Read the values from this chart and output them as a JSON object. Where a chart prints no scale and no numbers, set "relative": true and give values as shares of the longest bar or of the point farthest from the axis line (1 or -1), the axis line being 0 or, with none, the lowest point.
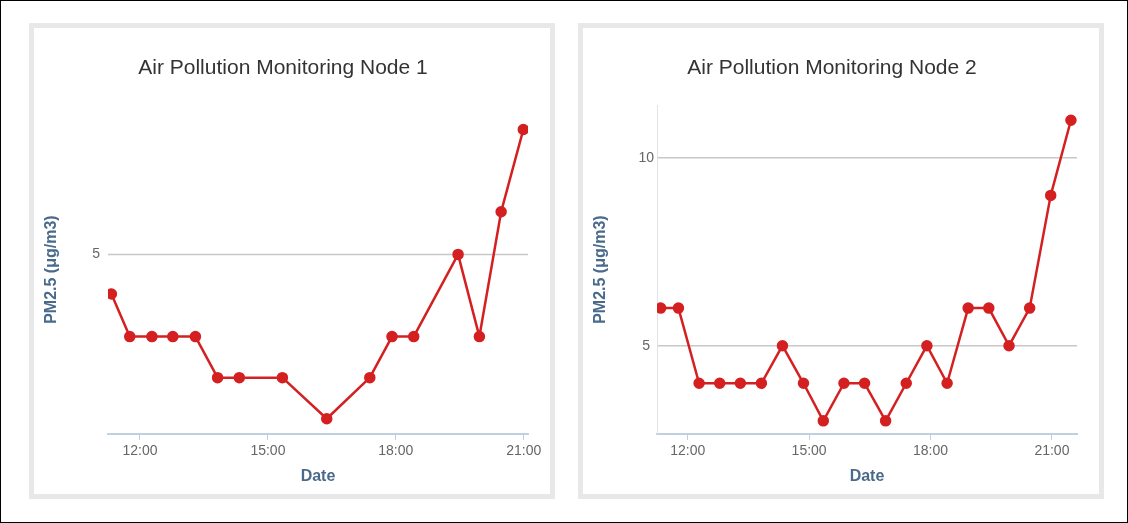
{
  "chart_data": [
    {
      "type": "line",
      "title": "Air Pollution Monitoring Node 1",
      "xlabel": "Date",
      "ylabel": "PM2.5 (μg/m3)",
      "relative": true,
      "x": [
        11.33,
        11.76,
        12.28,
        12.77,
        13.3,
        13.82,
        14.33,
        15.34,
        16.38,
        17.39,
        17.91,
        18.42,
        19.46,
        19.96,
        20.47,
        20.99
      ],
      "series": [
        {
          "color": "#d42020",
          "values": [
            0.46,
            0.32,
            0.32,
            0.32,
            0.32,
            0.185,
            0.185,
            0.185,
            0.05,
            0.185,
            0.32,
            0.32,
            0.59,
            0.32,
            0.73,
            1
          ]
        }
      ],
      "xlim": [
        11.25,
        21.1
      ],
      "xticks": [
        {
          "value": 12,
          "label": "12:00"
        },
        {
          "value": 15,
          "label": "15:00"
        },
        {
          "value": 18,
          "label": "18:00"
        },
        {
          "value": 21,
          "label": "21:00"
        }
      ],
      "ref_lines": [
        {
          "axis": "y",
          "value": 0.59,
          "color": "#c8c8c8"
        }
      ],
      "annotations": [
        "5"
      ],
      "marker": "circle",
      "line_style": "solid"
    },
    {
      "type": "line",
      "title": "Air Pollution Monitoring Node 2",
      "xlabel": "Date",
      "ylabel": "PM2.5 (μg/m3)",
      "x": [
        11.33,
        11.77,
        12.28,
        12.79,
        13.3,
        13.82,
        14.34,
        14.86,
        15.35,
        15.86,
        16.37,
        16.89,
        17.4,
        17.91,
        18.41,
        18.93,
        19.44,
        19.94,
        20.45,
        20.97,
        21.47
      ],
      "series": [
        {
          "color": "#d42020",
          "values": [
            6,
            6,
            4,
            4,
            4,
            4,
            5,
            4,
            3,
            4,
            4,
            3,
            4,
            5,
            4,
            6,
            6,
            5,
            6,
            9,
            11
          ]
        }
      ],
      "xlim": [
        11.24,
        21.62
      ],
      "ylim": [
        2.65,
        11.4
      ],
      "xticks": [
        {
          "value": 12,
          "label": "12:00"
        },
        {
          "value": 15,
          "label": "15:00"
        },
        {
          "value": 18,
          "label": "18:00"
        },
        {
          "value": 21,
          "label": "21:00"
        }
      ],
      "yticks": [
        5,
        10
      ],
      "grid": "y",
      "marker": "circle",
      "line_style": "solid"
    }
  ]
}
